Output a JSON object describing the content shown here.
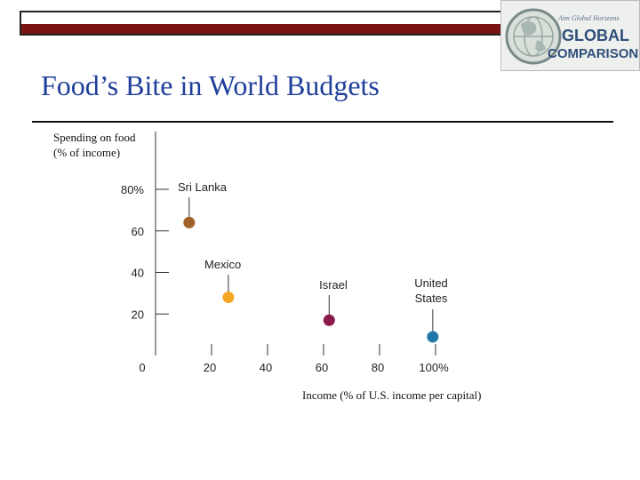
{
  "title": "Food’s Bite in World Budgets",
  "badge": {
    "line1": "GLOBAL",
    "line2": "COMPARISON",
    "small": "Aim Global Horizons"
  },
  "chart_data": {
    "type": "scatter",
    "title": "Food’s Bite in World Budgets",
    "ylabel_lines": [
      "Spending on food",
      "(% of income)"
    ],
    "xlabel": "Income (% of U.S. income per capital)",
    "xlim": [
      0,
      100
    ],
    "ylim": [
      0,
      80
    ],
    "x_ticks": [
      {
        "value": 0,
        "label": "0"
      },
      {
        "value": 20,
        "label": "20"
      },
      {
        "value": 40,
        "label": "40"
      },
      {
        "value": 60,
        "label": "60"
      },
      {
        "value": 80,
        "label": "80"
      },
      {
        "value": 100,
        "label": "100%"
      }
    ],
    "y_ticks": [
      {
        "value": 20,
        "label": "20"
      },
      {
        "value": 40,
        "label": "40"
      },
      {
        "value": 60,
        "label": "60"
      },
      {
        "value": 80,
        "label": "80%"
      }
    ],
    "grid": false,
    "points": [
      {
        "name": "Sri Lanka",
        "label_lines": [
          "Sri Lanka"
        ],
        "x": 12,
        "y": 64,
        "color": "#a0622a"
      },
      {
        "name": "Mexico",
        "label_lines": [
          "Mexico"
        ],
        "x": 26,
        "y": 28,
        "color": "#f5a623"
      },
      {
        "name": "Israel",
        "label_lines": [
          "Israel"
        ],
        "x": 62,
        "y": 17,
        "color": "#8b1a4a"
      },
      {
        "name": "United States",
        "label_lines": [
          "United",
          "States"
        ],
        "x": 99,
        "y": 9,
        "color": "#1f78a8"
      }
    ]
  }
}
